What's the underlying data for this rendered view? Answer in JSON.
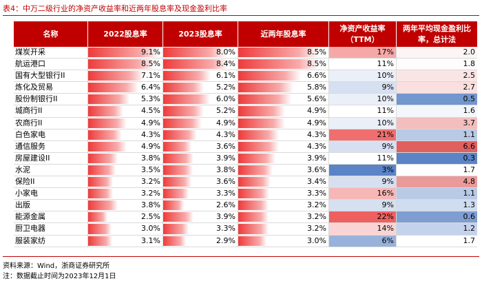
{
  "caption": "表4：中万二级行业的净资产收益率和近两年股息率及现金盈利比率",
  "headers": {
    "name": "名称",
    "d2022": "2022股息率",
    "d2023": "2023股息率",
    "avg": "近两年股息率",
    "roe": "净资产收益率（TTM）",
    "cash": "两年平均现金盈利比率，总计法"
  },
  "colors": {
    "header_bg": "#c00000",
    "bar_gradient_start": "#ee3b3b",
    "roe_high": "#ee6060",
    "roe_low": "#5b84c6",
    "cash_high": "#e06060",
    "cash_low": "#5b84c6"
  },
  "rows": [
    {
      "name": "煤炭开采",
      "d2022": "9.1%",
      "d2023": "8.0%",
      "avg": "8.5%",
      "roe": "17%",
      "cash": "2.0"
    },
    {
      "name": "航运港口",
      "d2022": "8.5%",
      "d2023": "8.4%",
      "avg": "8.5%",
      "roe": "11%",
      "cash": "1.8"
    },
    {
      "name": "国有大型银行II",
      "d2022": "7.1%",
      "d2023": "6.1%",
      "avg": "6.6%",
      "roe": "10%",
      "cash": "2.5"
    },
    {
      "name": "炼化及贸易",
      "d2022": "6.4%",
      "d2023": "5.2%",
      "avg": "5.8%",
      "roe": "9%",
      "cash": "2.7"
    },
    {
      "name": "股份制银行II",
      "d2022": "5.3%",
      "d2023": "6.0%",
      "avg": "5.6%",
      "roe": "10%",
      "cash": "0.5"
    },
    {
      "name": "城商行II",
      "d2022": "4.5%",
      "d2023": "5.2%",
      "avg": "4.9%",
      "roe": "11%",
      "cash": "1.6"
    },
    {
      "name": "农商行II",
      "d2022": "4.9%",
      "d2023": "4.9%",
      "avg": "4.9%",
      "roe": "10%",
      "cash": "3.7"
    },
    {
      "name": "白色家电",
      "d2022": "4.3%",
      "d2023": "4.3%",
      "avg": "4.3%",
      "roe": "21%",
      "cash": "1.1"
    },
    {
      "name": "通信服务",
      "d2022": "4.9%",
      "d2023": "3.6%",
      "avg": "4.3%",
      "roe": "9%",
      "cash": "6.6"
    },
    {
      "name": "房屋建设II",
      "d2022": "3.8%",
      "d2023": "3.9%",
      "avg": "3.9%",
      "roe": "11%",
      "cash": "0.3"
    },
    {
      "name": "水泥",
      "d2022": "3.5%",
      "d2023": "3.8%",
      "avg": "3.6%",
      "roe": "3%",
      "cash": "1.7"
    },
    {
      "name": "保险II",
      "d2022": "3.2%",
      "d2023": "3.6%",
      "avg": "3.4%",
      "roe": "9%",
      "cash": "4.8"
    },
    {
      "name": "小家电",
      "d2022": "3.2%",
      "d2023": "3.3%",
      "avg": "3.3%",
      "roe": "16%",
      "cash": "1.1"
    },
    {
      "name": "出版",
      "d2022": "3.8%",
      "d2023": "2.6%",
      "avg": "3.2%",
      "roe": "9%",
      "cash": "1.3"
    },
    {
      "name": "能源金属",
      "d2022": "2.5%",
      "d2023": "3.9%",
      "avg": "3.2%",
      "roe": "22%",
      "cash": "0.6"
    },
    {
      "name": "厨卫电器",
      "d2022": "3.0%",
      "d2023": "3.3%",
      "avg": "3.2%",
      "roe": "14%",
      "cash": "1.2"
    },
    {
      "name": "服装家纺",
      "d2022": "3.1%",
      "d2023": "2.9%",
      "avg": "3.0%",
      "roe": "6%",
      "cash": "1.7"
    }
  ],
  "footer": {
    "source": "资料来源：Wind，浙商证券研究所",
    "note": "注：数据截止时间为2023年12月1日"
  }
}
